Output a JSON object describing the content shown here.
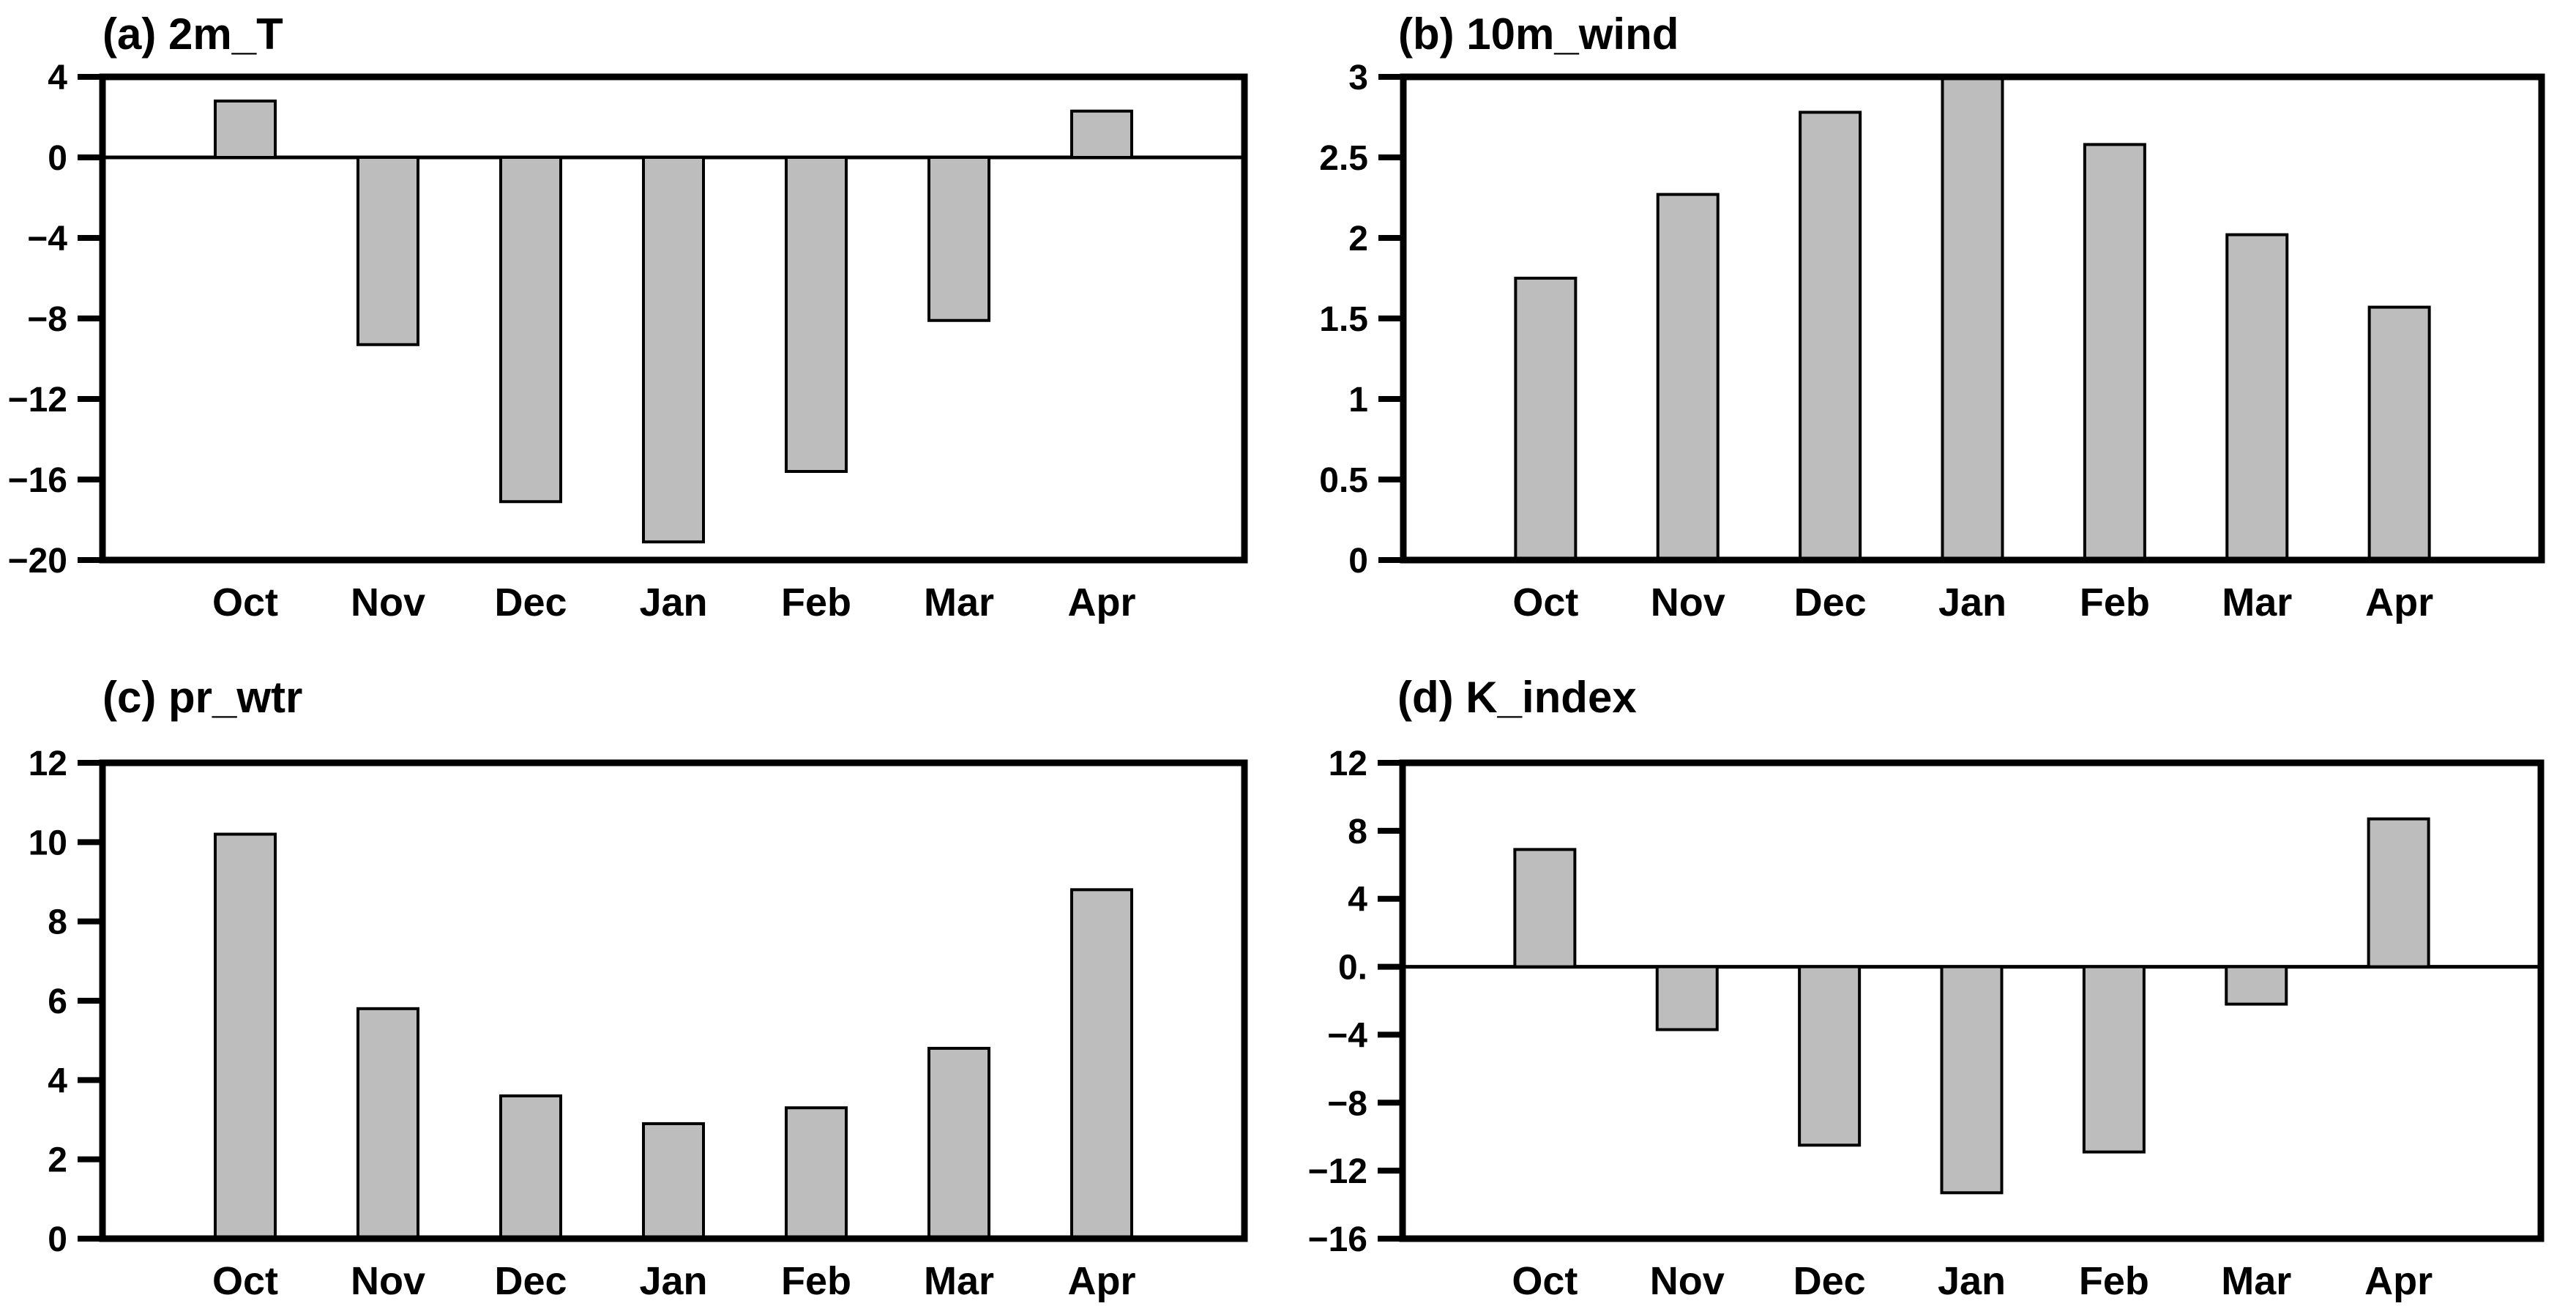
{
  "figure": {
    "background": "#ffffff",
    "bar_fill": "#bdbdbd",
    "bar_stroke": "#000000",
    "axis_color": "#000000"
  },
  "chart_data": [
    {
      "type": "bar",
      "panel": "a",
      "title": "(a) 2m_T",
      "categories": [
        "Oct",
        "Nov",
        "Dec",
        "Jan",
        "Feb",
        "Mar",
        "Apr"
      ],
      "values": [
        2.8,
        -9.3,
        -17.1,
        -19.1,
        -15.6,
        -8.1,
        2.3
      ],
      "ylim": [
        -20,
        4
      ],
      "yticks": [
        4,
        0,
        -4,
        -8,
        -12,
        -16,
        -20
      ],
      "ytick_labels": [
        "4",
        "0",
        "−4",
        "−8",
        "−12",
        "−16",
        "−20"
      ],
      "zero_line": true,
      "grid": false,
      "legend": null,
      "xlabel": "",
      "ylabel": ""
    },
    {
      "type": "bar",
      "panel": "b",
      "title": "(b) 10m_wind",
      "categories": [
        "Oct",
        "Nov",
        "Dec",
        "Jan",
        "Feb",
        "Mar",
        "Apr"
      ],
      "values": [
        1.75,
        2.27,
        2.78,
        2.99,
        2.58,
        2.02,
        1.57
      ],
      "ylim": [
        0,
        3
      ],
      "yticks": [
        3,
        2.5,
        2,
        1.5,
        1,
        0.5,
        0
      ],
      "ytick_labels": [
        "3",
        "2.5",
        "2",
        "1.5",
        "1",
        "0.5",
        "0"
      ],
      "zero_line": false,
      "grid": false,
      "legend": null,
      "xlabel": "",
      "ylabel": ""
    },
    {
      "type": "bar",
      "panel": "c",
      "title": "(c) pr_wtr",
      "categories": [
        "Oct",
        "Nov",
        "Dec",
        "Jan",
        "Feb",
        "Mar",
        "Apr"
      ],
      "values": [
        10.2,
        5.8,
        3.6,
        2.9,
        3.3,
        4.8,
        8.8
      ],
      "ylim": [
        0,
        12
      ],
      "yticks": [
        12,
        10,
        8,
        6,
        4,
        2,
        0
      ],
      "ytick_labels": [
        "12",
        "10",
        "8",
        "6",
        "4",
        "2",
        "0"
      ],
      "zero_line": false,
      "grid": false,
      "legend": null,
      "xlabel": "",
      "ylabel": ""
    },
    {
      "type": "bar",
      "panel": "d",
      "title": "(d) K_index",
      "categories": [
        "Oct",
        "Nov",
        "Dec",
        "Jan",
        "Feb",
        "Mar",
        "Apr"
      ],
      "values": [
        6.9,
        -3.7,
        -10.5,
        -13.3,
        -10.9,
        -2.2,
        8.7
      ],
      "ylim": [
        -16,
        12
      ],
      "yticks": [
        12,
        8,
        4,
        0,
        -4,
        -8,
        -12,
        -16
      ],
      "ytick_labels": [
        "12",
        "8",
        "4",
        "0.",
        "−4",
        "−8",
        "−12",
        "−16"
      ],
      "zero_line": true,
      "grid": false,
      "legend": null,
      "xlabel": "",
      "ylabel": ""
    }
  ]
}
